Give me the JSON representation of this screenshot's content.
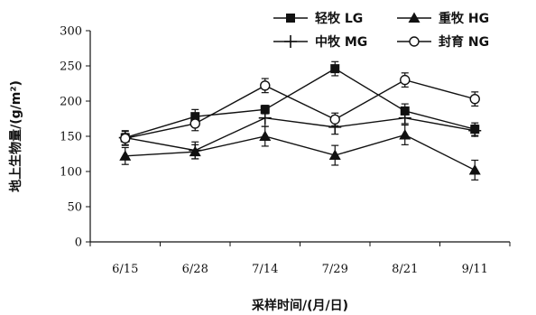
{
  "chart_data": {
    "type": "line",
    "title": "",
    "xlabel": "采样时间/(月/日)",
    "ylabel": "地上生物量/(g/m²)",
    "ylim": [
      0,
      300
    ],
    "yticks": [
      0,
      50,
      100,
      150,
      200,
      250,
      300
    ],
    "categories": [
      "6/15",
      "6/28",
      "7/14",
      "7/29",
      "8/21",
      "9/11"
    ],
    "grid": false,
    "legend_position": "top-right",
    "series": [
      {
        "name": "轻牧 LG",
        "marker": "filled-square",
        "values": [
          148,
          178,
          188,
          246,
          186,
          160
        ],
        "errors": [
          10,
          10,
          6,
          10,
          10,
          9
        ]
      },
      {
        "name": "重牧 HG",
        "marker": "filled-triangle",
        "values": [
          122,
          128,
          150,
          123,
          152,
          102
        ],
        "errors": [
          12,
          10,
          14,
          14,
          14,
          14
        ]
      },
      {
        "name": "中牧 MG",
        "marker": "plus",
        "values": [
          148,
          130,
          176,
          163,
          176,
          158
        ],
        "errors": [
          6,
          12,
          12,
          10,
          8,
          8
        ]
      },
      {
        "name": "封育 NG",
        "marker": "open-circle",
        "values": [
          147,
          168,
          222,
          174,
          230,
          203
        ],
        "errors": [
          10,
          10,
          10,
          9,
          10,
          10
        ]
      }
    ]
  }
}
